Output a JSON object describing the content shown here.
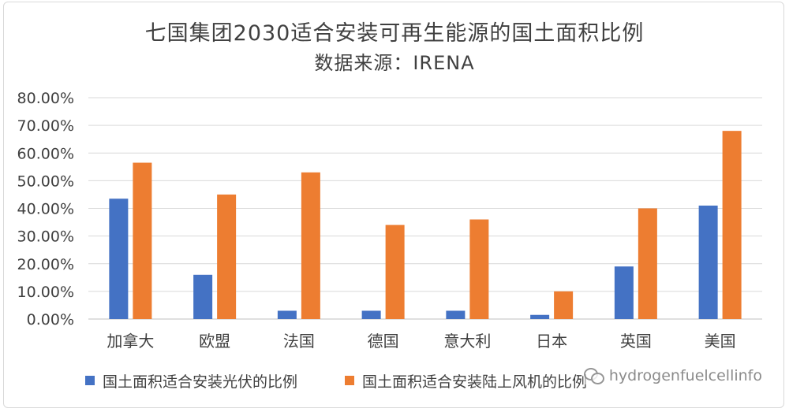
{
  "chart_data": {
    "type": "bar",
    "title": "七国集团2030适合安装可再生能源的国土面积比例",
    "subtitle": "数据来源：IRENA",
    "categories": [
      "加拿大",
      "欧盟",
      "法国",
      "德国",
      "意大利",
      "日本",
      "英国",
      "美国"
    ],
    "series": [
      {
        "name": "国土面积适合安装光伏的比例",
        "color": "#4472c4",
        "values": [
          0.435,
          0.16,
          0.03,
          0.03,
          0.03,
          0.015,
          0.19,
          0.41
        ]
      },
      {
        "name": "国土面积适合安装陆上风机的比例",
        "color": "#ed7d31",
        "values": [
          0.565,
          0.45,
          0.53,
          0.34,
          0.36,
          0.1,
          0.4,
          0.68
        ]
      }
    ],
    "yticks": [
      "0.00%",
      "10.00%",
      "20.00%",
      "30.00%",
      "40.00%",
      "50.00%",
      "60.00%",
      "70.00%",
      "80.00%"
    ],
    "ylim": [
      0,
      0.8
    ],
    "grid": true,
    "legend_position": "bottom"
  },
  "watermark": {
    "text": "hydrogenfuelcellinfo",
    "icon": "wechat-icon"
  }
}
